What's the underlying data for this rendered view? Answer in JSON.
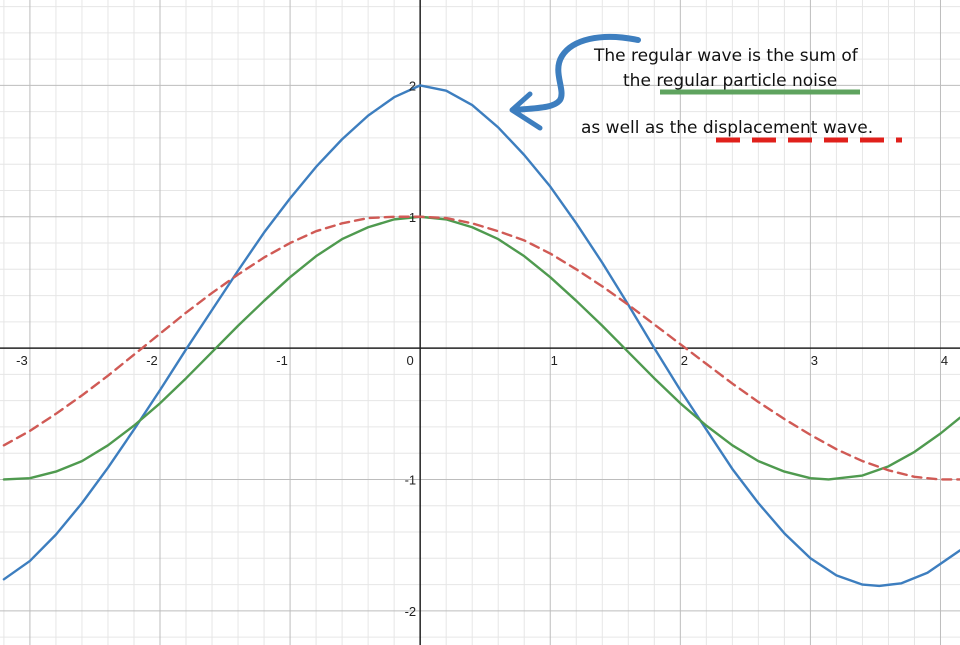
{
  "chart_data": {
    "type": "line",
    "title": "",
    "xlabel": "",
    "ylabel": "",
    "xlim": [
      -3.23,
      4.15
    ],
    "ylim": [
      -2.26,
      2.65
    ],
    "grid": true,
    "minor_grid": true,
    "x_ticks": [
      -3,
      -2,
      -1,
      0,
      1,
      2,
      3,
      4
    ],
    "y_ticks": [
      -2,
      -1,
      1,
      2
    ],
    "origin_label": "0",
    "series": [
      {
        "color": "#3d7ebf",
        "style": "solid",
        "points": [
          [
            -3.2,
            -1.76
          ],
          [
            -3.0,
            -1.62
          ],
          [
            -2.8,
            -1.42
          ],
          [
            -2.6,
            -1.18
          ],
          [
            -2.4,
            -0.91
          ],
          [
            -2.2,
            -0.62
          ],
          [
            -2.0,
            -0.32
          ],
          [
            -1.8,
            -0.01
          ],
          [
            -1.6,
            0.29
          ],
          [
            -1.4,
            0.59
          ],
          [
            -1.2,
            0.88
          ],
          [
            -1.0,
            1.14
          ],
          [
            -0.8,
            1.38
          ],
          [
            -0.6,
            1.59
          ],
          [
            -0.4,
            1.77
          ],
          [
            -0.2,
            1.91
          ],
          [
            0.0,
            2.0
          ],
          [
            0.2,
            1.96
          ],
          [
            0.4,
            1.85
          ],
          [
            0.6,
            1.68
          ],
          [
            0.8,
            1.47
          ],
          [
            1.0,
            1.23
          ],
          [
            1.2,
            0.95
          ],
          [
            1.4,
            0.65
          ],
          [
            1.6,
            0.33
          ],
          [
            1.8,
            0.0
          ],
          [
            2.0,
            -0.32
          ],
          [
            2.2,
            -0.62
          ],
          [
            2.4,
            -0.92
          ],
          [
            2.6,
            -1.18
          ],
          [
            2.8,
            -1.41
          ],
          [
            3.0,
            -1.6
          ],
          [
            3.2,
            -1.73
          ],
          [
            3.4,
            -1.8
          ],
          [
            3.53,
            -1.81
          ],
          [
            3.7,
            -1.79
          ],
          [
            3.9,
            -1.71
          ],
          [
            4.15,
            -1.54
          ]
        ]
      },
      {
        "color": "#4f9a4f",
        "style": "solid",
        "points": [
          [
            -3.2,
            -1.0
          ],
          [
            -3.0,
            -0.99
          ],
          [
            -2.8,
            -0.94
          ],
          [
            -2.6,
            -0.86
          ],
          [
            -2.4,
            -0.74
          ],
          [
            -2.2,
            -0.59
          ],
          [
            -2.0,
            -0.42
          ],
          [
            -1.8,
            -0.23
          ],
          [
            -1.6,
            -0.03
          ],
          [
            -1.4,
            0.17
          ],
          [
            -1.2,
            0.36
          ],
          [
            -1.0,
            0.54
          ],
          [
            -0.8,
            0.7
          ],
          [
            -0.6,
            0.83
          ],
          [
            -0.4,
            0.92
          ],
          [
            -0.2,
            0.98
          ],
          [
            0.0,
            1.0
          ],
          [
            0.2,
            0.98
          ],
          [
            0.4,
            0.92
          ],
          [
            0.6,
            0.83
          ],
          [
            0.8,
            0.7
          ],
          [
            1.0,
            0.54
          ],
          [
            1.2,
            0.36
          ],
          [
            1.4,
            0.17
          ],
          [
            1.6,
            -0.03
          ],
          [
            1.8,
            -0.23
          ],
          [
            2.0,
            -0.42
          ],
          [
            2.2,
            -0.59
          ],
          [
            2.4,
            -0.74
          ],
          [
            2.6,
            -0.86
          ],
          [
            2.8,
            -0.94
          ],
          [
            3.0,
            -0.99
          ],
          [
            3.14,
            -1.0
          ],
          [
            3.4,
            -0.97
          ],
          [
            3.6,
            -0.9
          ],
          [
            3.8,
            -0.79
          ],
          [
            4.0,
            -0.65
          ],
          [
            4.15,
            -0.53
          ]
        ]
      },
      {
        "color": "#d05a55",
        "style": "dashed",
        "points": [
          [
            -3.2,
            -0.74
          ],
          [
            -3.0,
            -0.63
          ],
          [
            -2.8,
            -0.5
          ],
          [
            -2.6,
            -0.36
          ],
          [
            -2.4,
            -0.21
          ],
          [
            -2.2,
            -0.05
          ],
          [
            -2.0,
            0.11
          ],
          [
            -1.8,
            0.27
          ],
          [
            -1.6,
            0.42
          ],
          [
            -1.4,
            0.56
          ],
          [
            -1.2,
            0.69
          ],
          [
            -1.0,
            0.8
          ],
          [
            -0.8,
            0.89
          ],
          [
            -0.6,
            0.95
          ],
          [
            -0.4,
            0.99
          ],
          [
            -0.2,
            1.0
          ],
          [
            0.0,
            1.0
          ],
          [
            0.2,
            0.99
          ],
          [
            0.4,
            0.95
          ],
          [
            0.6,
            0.89
          ],
          [
            0.8,
            0.82
          ],
          [
            1.0,
            0.72
          ],
          [
            1.2,
            0.6
          ],
          [
            1.4,
            0.47
          ],
          [
            1.6,
            0.33
          ],
          [
            1.8,
            0.18
          ],
          [
            2.0,
            0.03
          ],
          [
            2.2,
            -0.12
          ],
          [
            2.4,
            -0.27
          ],
          [
            2.6,
            -0.41
          ],
          [
            2.8,
            -0.54
          ],
          [
            3.0,
            -0.66
          ],
          [
            3.2,
            -0.77
          ],
          [
            3.4,
            -0.86
          ],
          [
            3.6,
            -0.93
          ],
          [
            3.8,
            -0.98
          ],
          [
            4.0,
            -1.0
          ],
          [
            4.15,
            -1.0
          ]
        ]
      }
    ],
    "annotation": {
      "line1": "The regular wave is the sum of",
      "line2_prefix": "the ",
      "line2_underlined": "regular particle noise",
      "line3_prefix": "as well as the ",
      "line3_underlined": "displacement wave",
      "line3_suffix": ".",
      "arrow_color": "#3d7ebf",
      "green_underline_color": "#5fa35f",
      "red_underline_color": "#e0201b"
    }
  }
}
